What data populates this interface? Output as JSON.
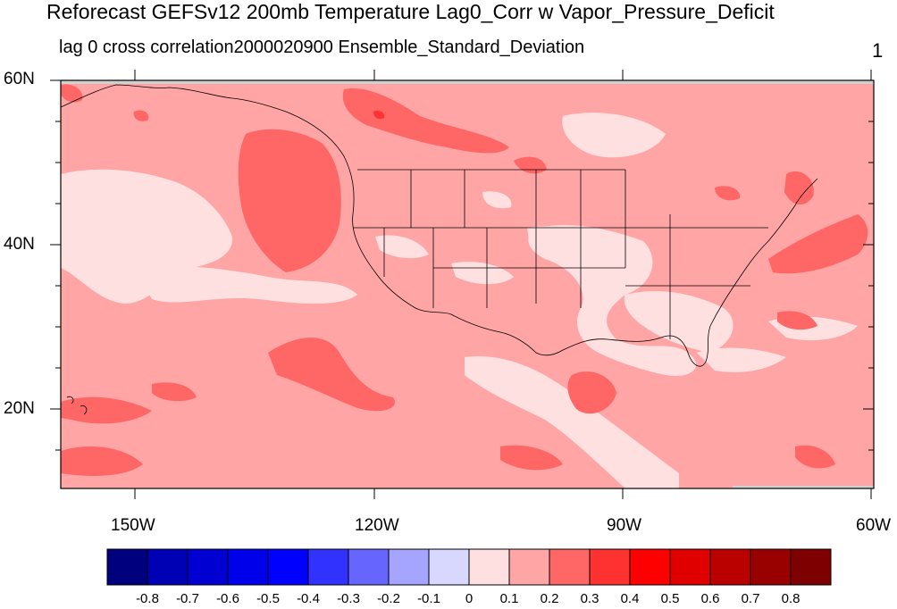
{
  "title": "Reforecast GEFSv12 200mb Temperature Lag0_Corr w Vapor_Pressure_Deficit",
  "subtitle_left": "lag 0 cross correlation",
  "subtitle_right": "2000020900 Ensemble_Standard_Deviation",
  "page_number": "1",
  "lat_labels": [
    "60N",
    "40N",
    "20N"
  ],
  "lon_labels": [
    "150W",
    "120W",
    "90W",
    "60W"
  ],
  "colorbar": {
    "colors": [
      "#00007f",
      "#0000b4",
      "#0000d2",
      "#0000eb",
      "#0000ff",
      "#3232ff",
      "#6666ff",
      "#a5a5ff",
      "#d8d8ff",
      "#ffe0e0",
      "#ffa5a5",
      "#ff6666",
      "#ff3232",
      "#ff0000",
      "#e00000",
      "#bb0000",
      "#990000",
      "#7f0000"
    ],
    "labels": [
      "-0.8",
      "-0.7",
      "-0.6",
      "-0.5",
      "-0.4",
      "-0.3",
      "-0.2",
      "-0.1",
      "0",
      "0.1",
      "0.2",
      "0.3",
      "0.4",
      "0.5",
      "0.6",
      "0.7",
      "0.8"
    ]
  },
  "colors": {
    "base": "#ffa5a5",
    "light": "#ffe0e0",
    "medium": "#ff6666",
    "strong": "#ff3232",
    "missing": "#d0d0d0"
  }
}
